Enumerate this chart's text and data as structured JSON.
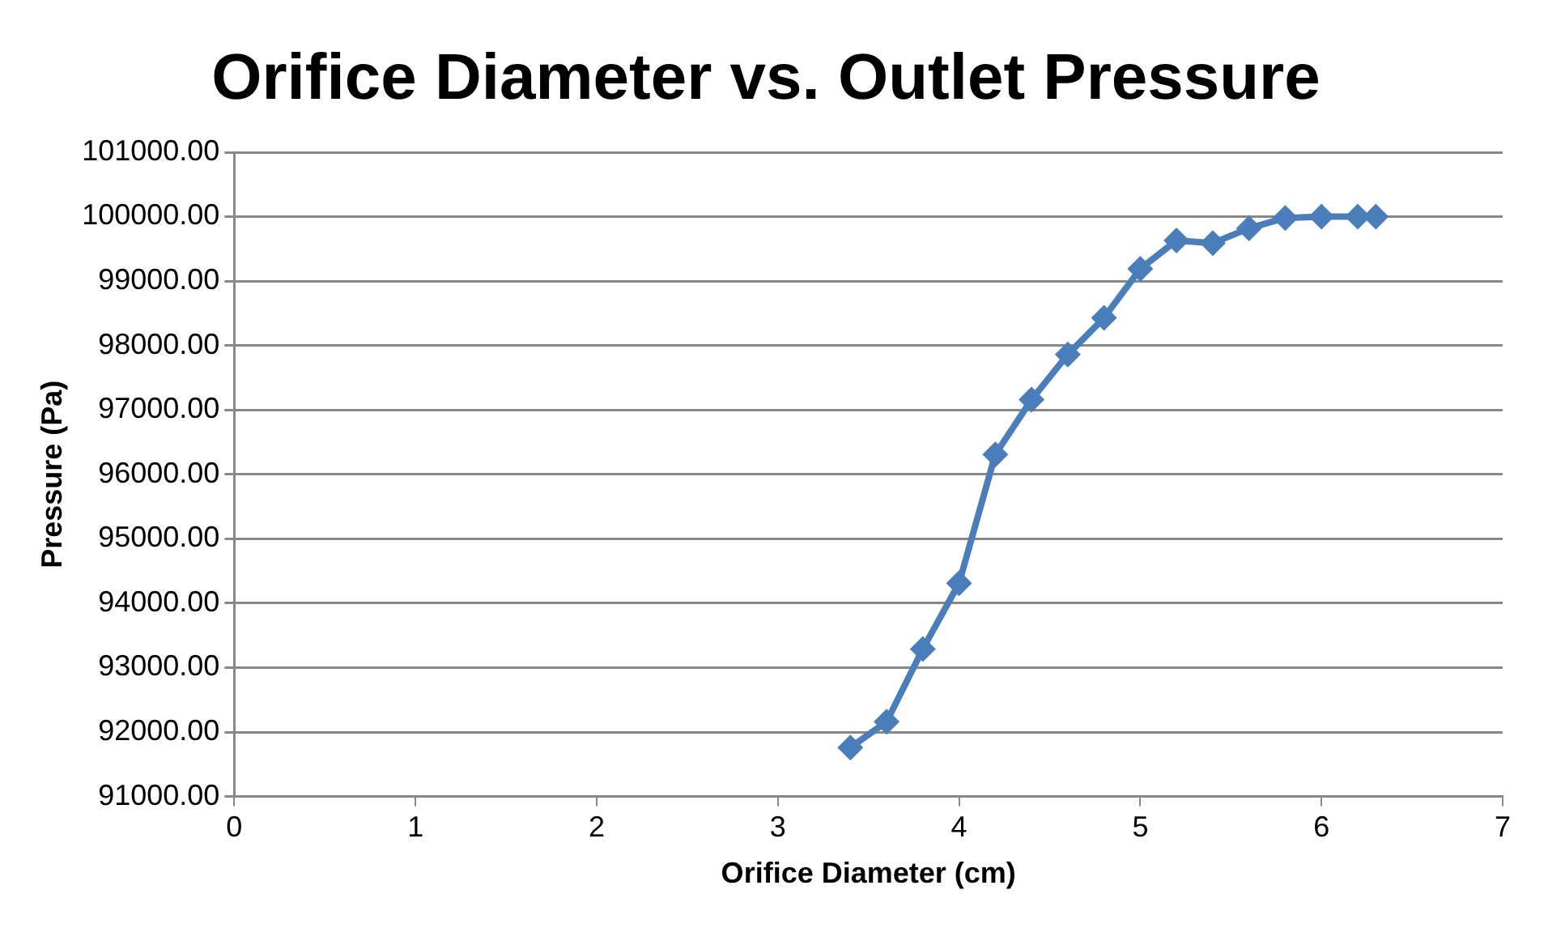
{
  "chart_data": {
    "type": "scatter",
    "title": "Orifice Diameter vs. Outlet Pressure",
    "xlabel": "Orifice Diameter (cm)",
    "ylabel": "Pressure (Pa)",
    "x": [
      3.4,
      3.6,
      3.8,
      4.0,
      4.2,
      4.4,
      4.6,
      4.8,
      5.0,
      5.2,
      5.4,
      5.6,
      5.8,
      6.0,
      6.2,
      6.3
    ],
    "series": [
      {
        "type": "line",
        "color": "#4a7ebb",
        "values": [
          91760,
          92160,
          93290,
          94310,
          96310,
          97160,
          97860,
          98430,
          99190,
          99630,
          99590,
          99820,
          99980,
          100000,
          100000,
          100000
        ]
      }
    ],
    "xlim": [
      0,
      7
    ],
    "xticks": [
      0,
      1,
      2,
      3,
      4,
      5,
      6,
      7
    ],
    "ylim": [
      91000,
      101000
    ],
    "yticks": [
      {
        "value": 91000,
        "label": "91000.00"
      },
      {
        "value": 92000,
        "label": "92000.00"
      },
      {
        "value": 93000,
        "label": "93000.00"
      },
      {
        "value": 94000,
        "label": "94000.00"
      },
      {
        "value": 95000,
        "label": "95000.00"
      },
      {
        "value": 96000,
        "label": "96000.00"
      },
      {
        "value": 97000,
        "label": "97000.00"
      },
      {
        "value": 98000,
        "label": "98000.00"
      },
      {
        "value": 99000,
        "label": "99000.00"
      },
      {
        "value": 100000,
        "label": "100000.00"
      },
      {
        "value": 101000,
        "label": "101000.00"
      }
    ],
    "grid": "y",
    "legend": false,
    "marker": "diamond",
    "line_style": "solid"
  }
}
